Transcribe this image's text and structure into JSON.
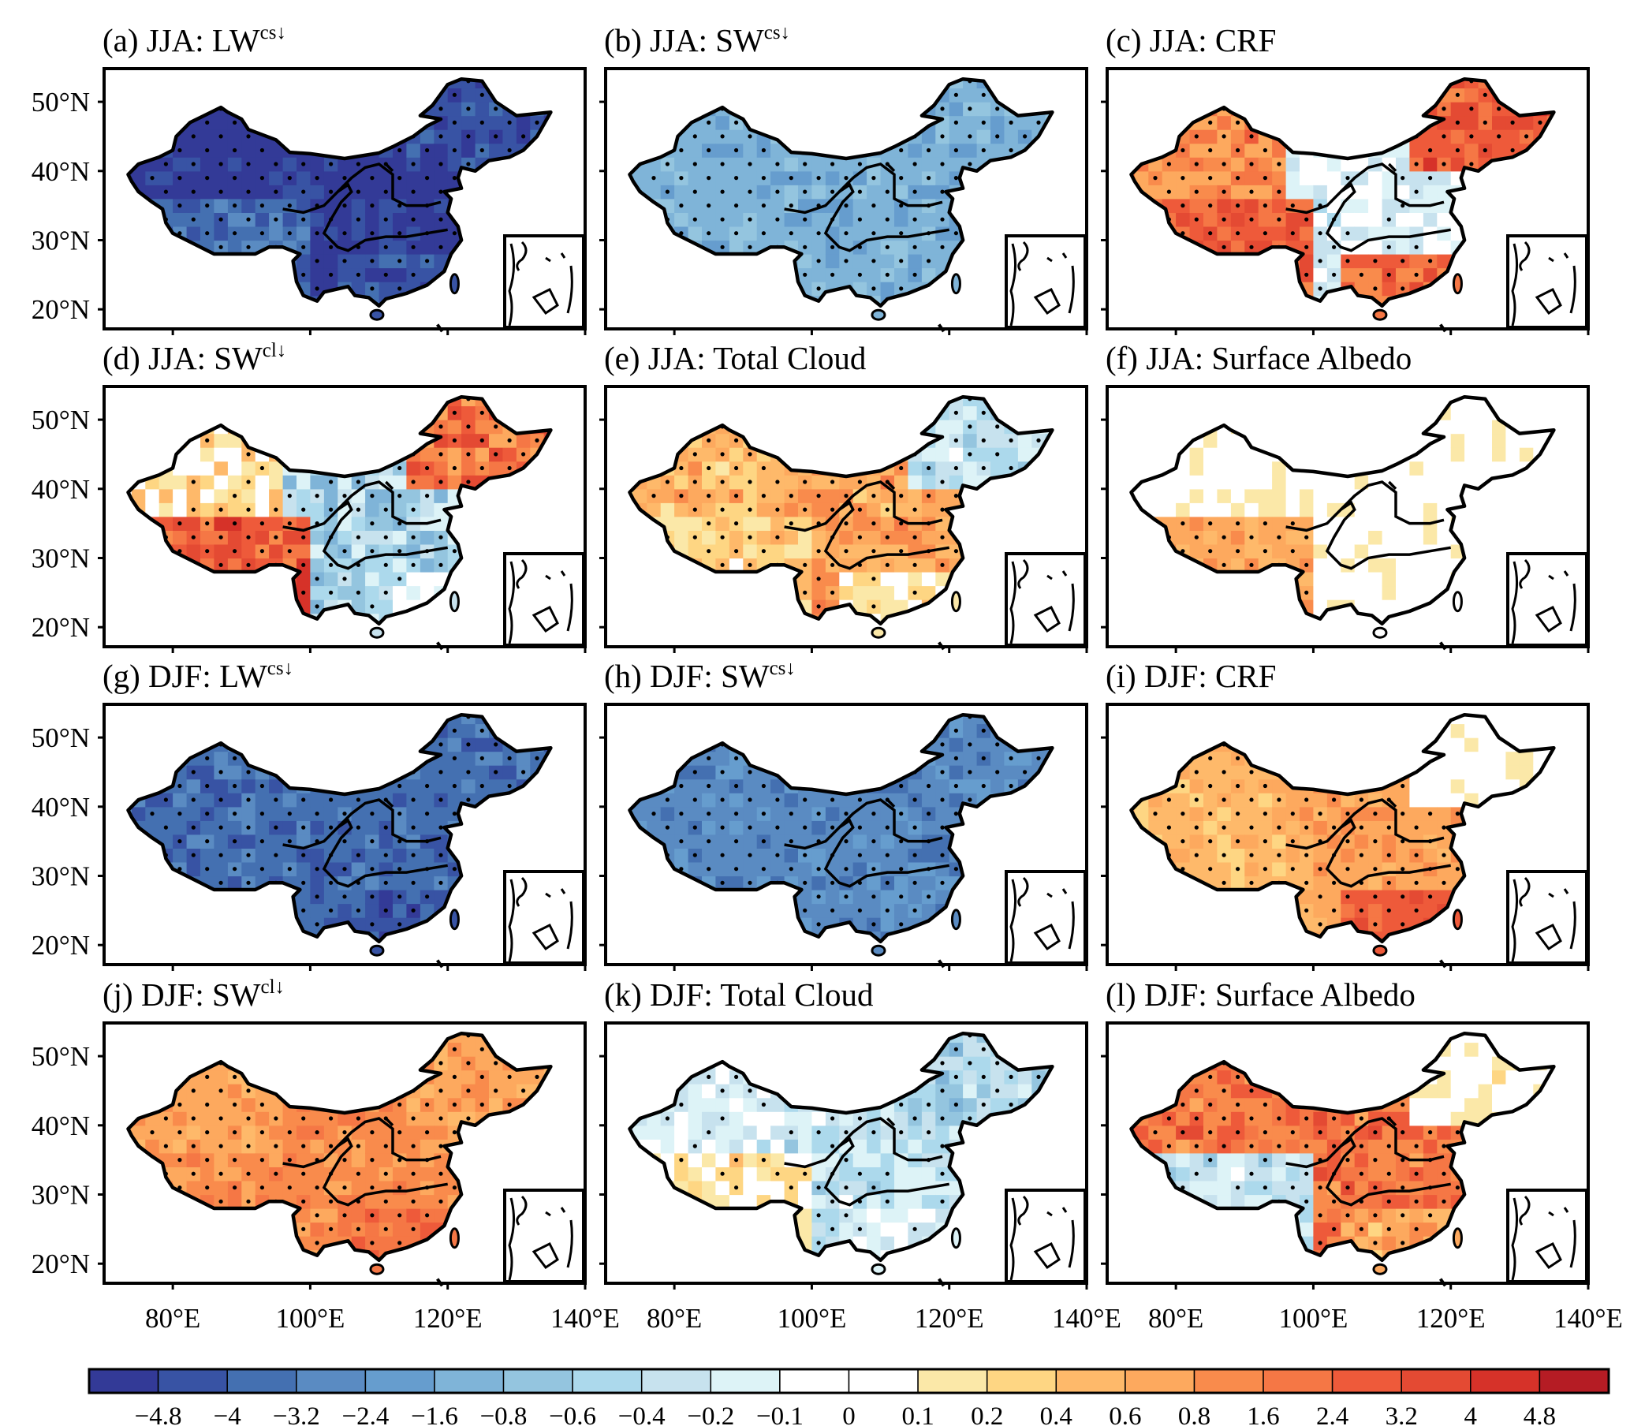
{
  "panels": [
    {
      "prefix": "(a) JJA: LW",
      "sup": "cs↓",
      "base": [
        0,
        2,
        0,
        1,
        1
      ],
      "spread": 1
    },
    {
      "prefix": "(b) JJA: SW",
      "sup": "cs↓",
      "base": [
        5,
        5,
        5,
        5,
        5
      ],
      "spread": 1
    },
    {
      "prefix": "(c) JJA: CRF",
      "sup": "",
      "base": [
        16,
        18,
        9,
        18,
        17
      ],
      "spread": 2
    },
    {
      "prefix": "(d) JJA: SW",
      "sup": "cl↓",
      "base": [
        12,
        18,
        7,
        17,
        8
      ],
      "spread": 3
    },
    {
      "prefix": "(e) JJA: Total Cloud",
      "sup": "",
      "base": [
        14,
        13,
        15,
        8,
        12
      ],
      "spread": 2
    },
    {
      "prefix": "(f) JJA: Surface Albedo",
      "sup": "",
      "base": [
        11,
        15,
        11,
        11,
        11
      ],
      "spread": 1
    },
    {
      "prefix": "(g) DJF: LW",
      "sup": "cs↓",
      "base": [
        2,
        2,
        2,
        2,
        1
      ],
      "spread": 1
    },
    {
      "prefix": "(h) DJF: SW",
      "sup": "cs↓",
      "base": [
        3,
        3,
        3,
        3,
        3
      ],
      "spread": 1
    },
    {
      "prefix": "(i) DJF: CRF",
      "sup": "",
      "base": [
        14,
        14,
        15,
        11,
        18
      ],
      "spread": 1
    },
    {
      "prefix": "(j) DJF: SW",
      "sup": "cl↓",
      "base": [
        15,
        16,
        16,
        15,
        17
      ],
      "spread": 1
    },
    {
      "prefix": "(k) DJF: Total Cloud",
      "sup": "",
      "base": [
        9,
        12,
        8,
        7,
        9
      ],
      "spread": 2
    },
    {
      "prefix": "(l) DJF: Surface Albedo",
      "sup": "",
      "base": [
        17,
        8,
        17,
        11,
        15
      ],
      "spread": 2
    }
  ],
  "lat_labels": [
    {
      "lat": 50,
      "label": "50°N"
    },
    {
      "lat": 40,
      "label": "40°N"
    },
    {
      "lat": 30,
      "label": "30°N"
    },
    {
      "lat": 20,
      "label": "20°N"
    }
  ],
  "lon_labels": [
    {
      "lon": 80,
      "label": "80°E"
    },
    {
      "lon": 100,
      "label": "100°E"
    },
    {
      "lon": 120,
      "label": "120°E"
    },
    {
      "lon": 140,
      "label": "140°E"
    }
  ],
  "colorbar": {
    "levels": [
      "−4.8",
      "−4",
      "−3.2",
      "−2.4",
      "−1.6",
      "−0.8",
      "−0.6",
      "−0.4",
      "−0.2",
      "−0.1",
      "0",
      "0.1",
      "0.2",
      "0.4",
      "0.6",
      "0.8",
      "1.6",
      "2.4",
      "3.2",
      "4",
      "4.8"
    ],
    "colors": [
      "#333a97",
      "#3853a4",
      "#4470b1",
      "#5a8bc2",
      "#669dce",
      "#7fb4d8",
      "#94c5df",
      "#acd9ec",
      "#c7e2ee",
      "#ddf3f7",
      "#ffffff",
      "#ffffff",
      "#fbe8a8",
      "#fed683",
      "#feb96a",
      "#fda95e",
      "#f98b4c",
      "#f57745",
      "#ee5a3a",
      "#e44a33",
      "#d63229",
      "#b51c24"
    ]
  }
}
